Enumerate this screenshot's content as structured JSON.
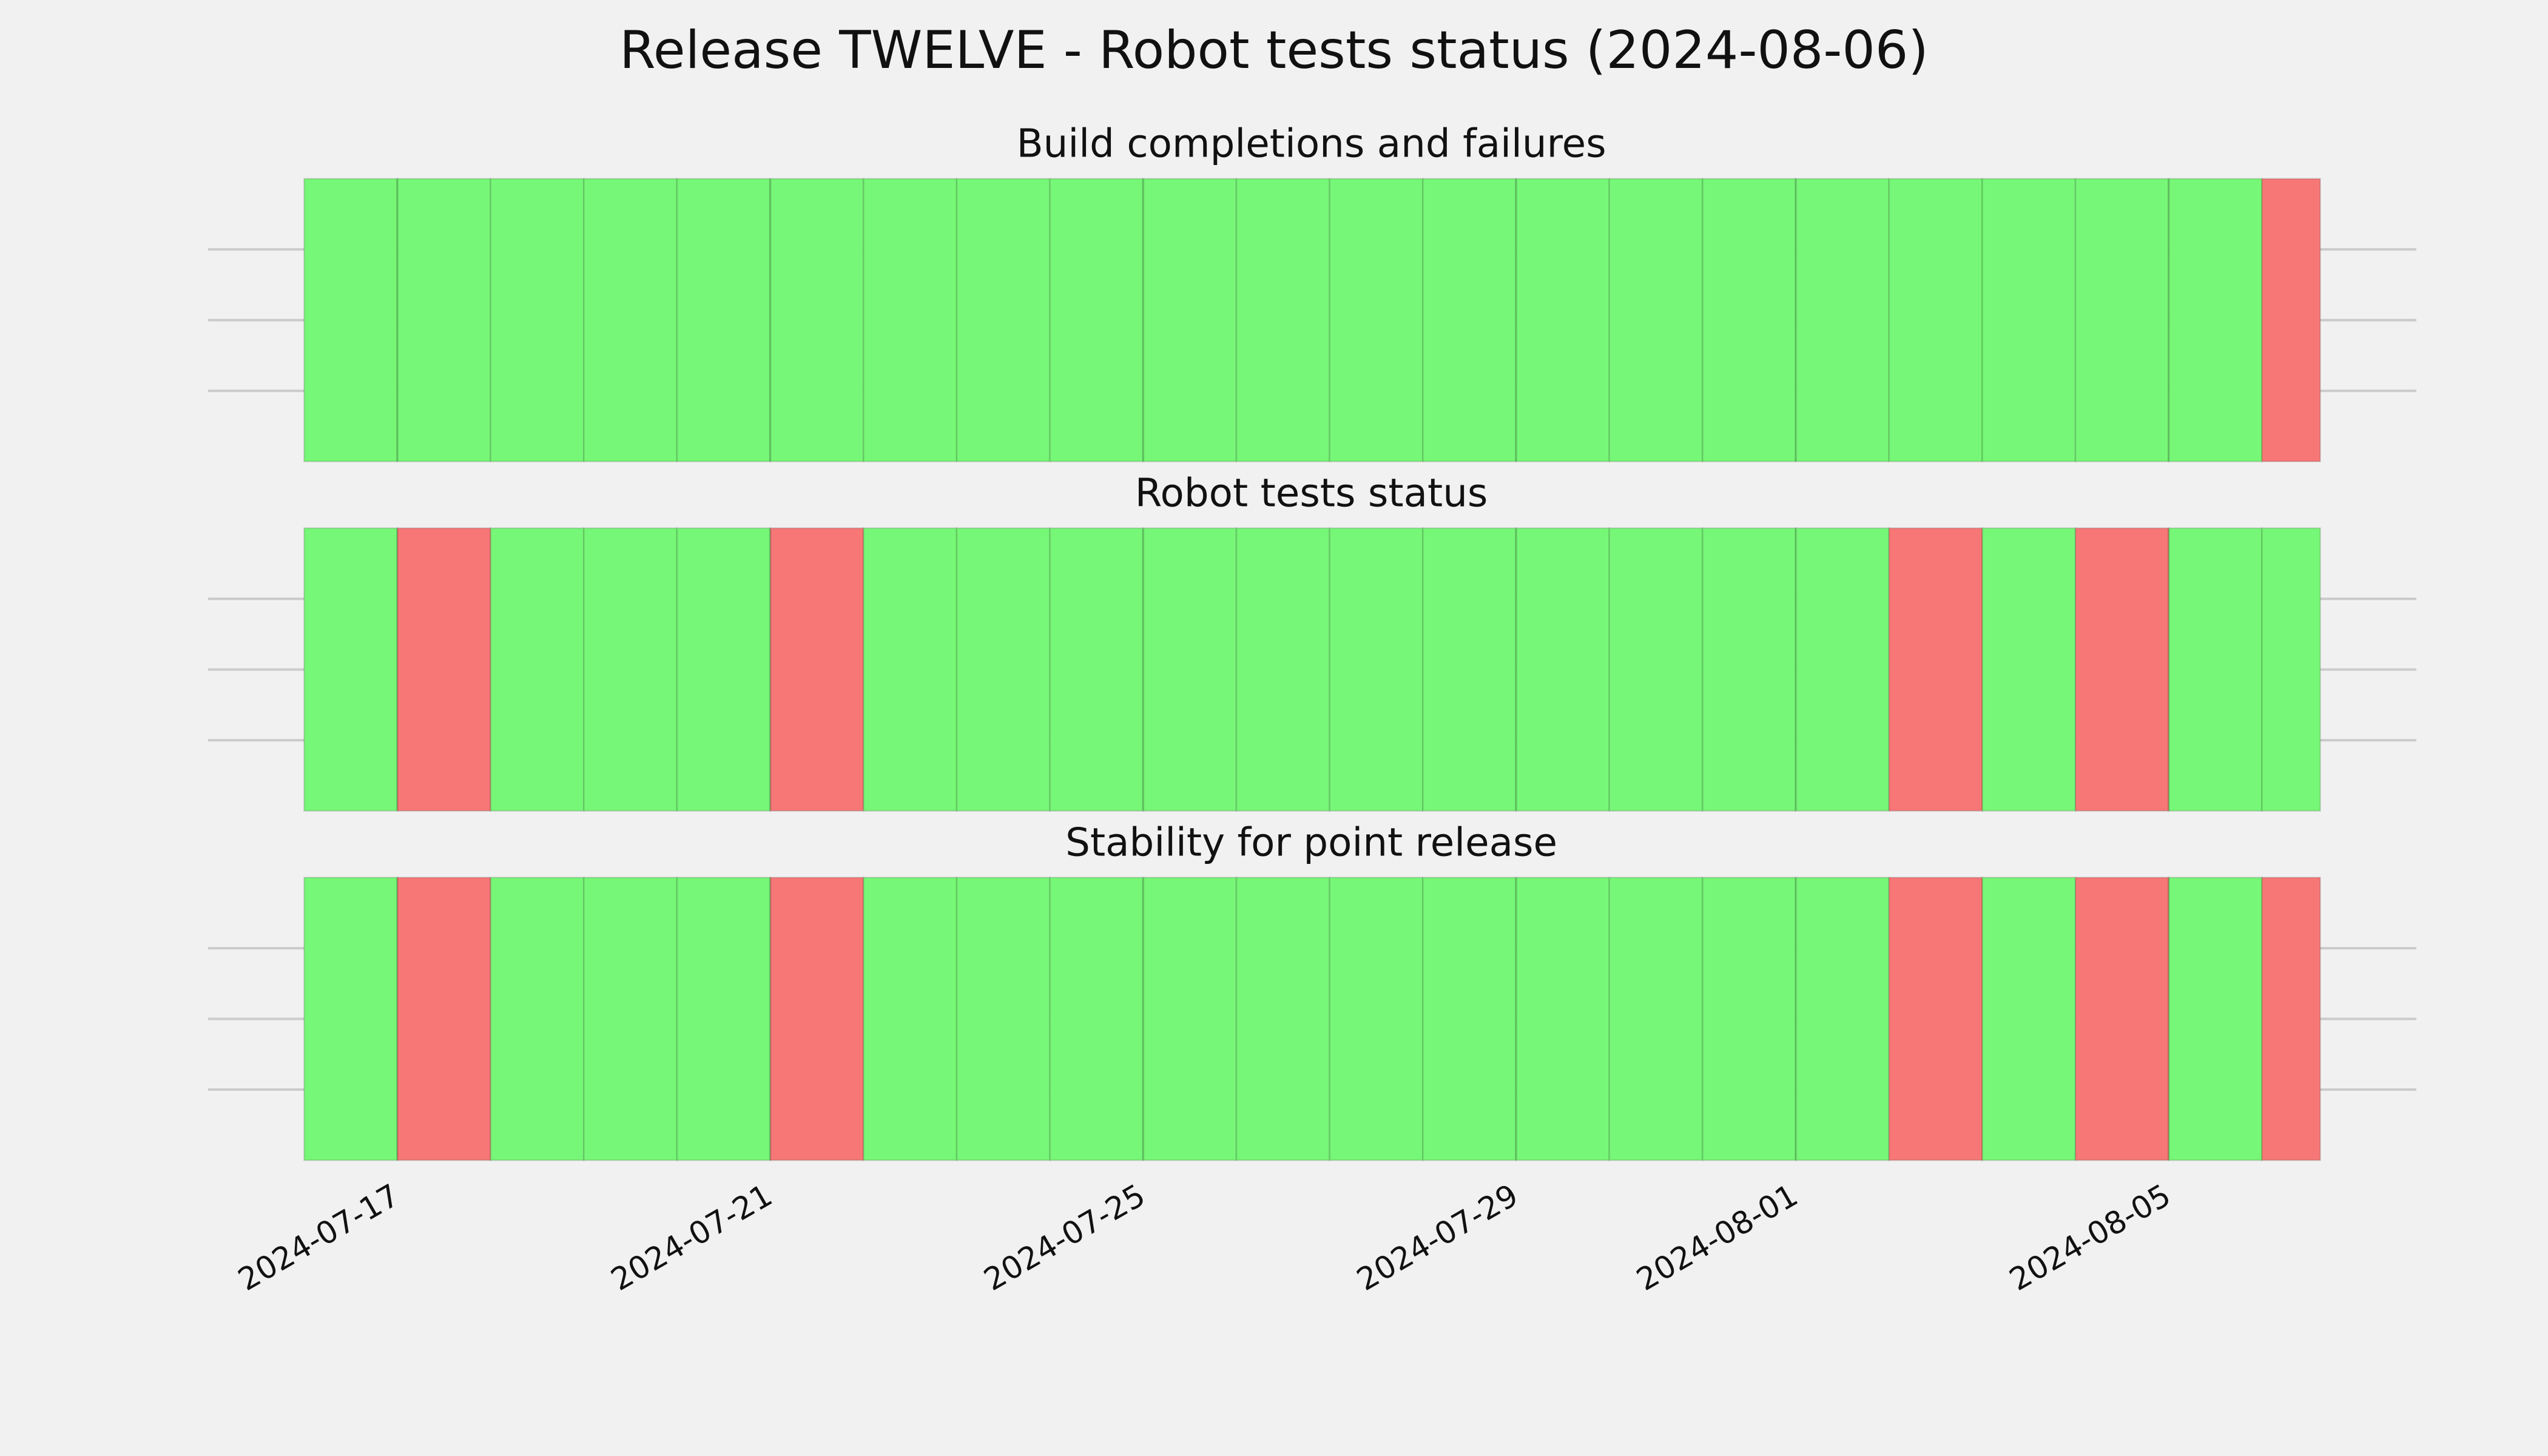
{
  "chart_data": {
    "type": "timeline",
    "title": "Release TWELVE - Robot tests status (2024-08-06)",
    "edges": [
      "2024-07-16",
      "2024-07-17",
      "2024-07-18",
      "2024-07-19",
      "2024-07-20",
      "2024-07-21",
      "2024-07-22",
      "2024-07-23",
      "2024-07-24",
      "2024-07-25",
      "2024-07-26",
      "2024-07-27",
      "2024-07-28",
      "2024-07-29",
      "2024-07-30",
      "2024-07-31",
      "2024-08-01",
      "2024-08-02",
      "2024-08-03",
      "2024-08-04",
      "2024-08-05",
      "2024-08-06",
      "2024-08-06T15:00"
    ],
    "xlim": [
      "2024-07-14T23:15",
      "2024-08-07T15:45"
    ],
    "xticks": [
      "2024-07-17",
      "2024-07-21",
      "2024-07-25",
      "2024-07-29",
      "2024-08-01",
      "2024-08-05"
    ],
    "ylim": [
      0,
      1
    ],
    "yticks": [
      0.25,
      0.5,
      0.75
    ],
    "grid": true,
    "panels": [
      {
        "title": "Build completions and failures",
        "colors": [
          "#77f777",
          "#77f777",
          "#77f777",
          "#77f777",
          "#77f777",
          "#77f777",
          "#77f777",
          "#77f777",
          "#77f777",
          "#77f777",
          "#77f777",
          "#77f777",
          "#77f777",
          "#77f777",
          "#77f777",
          "#77f777",
          "#77f777",
          "#77f777",
          "#77f777",
          "#77f777",
          "#77f777",
          "#f77777"
        ]
      },
      {
        "title": "Robot tests status",
        "colors": [
          "#77f777",
          "#f77777",
          "#77f777",
          "#77f777",
          "#77f777",
          "#f77777",
          "#77f777",
          "#77f777",
          "#77f777",
          "#77f777",
          "#77f777",
          "#77f777",
          "#77f777",
          "#77f777",
          "#77f777",
          "#77f777",
          "#77f777",
          "#f77777",
          "#77f777",
          "#f77777",
          "#77f777",
          "#77f777"
        ]
      },
      {
        "title": "Stability for point release",
        "colors": [
          "#77f777",
          "#f77777",
          "#77f777",
          "#77f777",
          "#77f777",
          "#f77777",
          "#77f777",
          "#77f777",
          "#77f777",
          "#77f777",
          "#77f777",
          "#77f777",
          "#77f777",
          "#77f777",
          "#77f777",
          "#77f777",
          "#77f777",
          "#f77777",
          "#77f777",
          "#f77777",
          "#77f777",
          "#f77777"
        ]
      }
    ]
  }
}
